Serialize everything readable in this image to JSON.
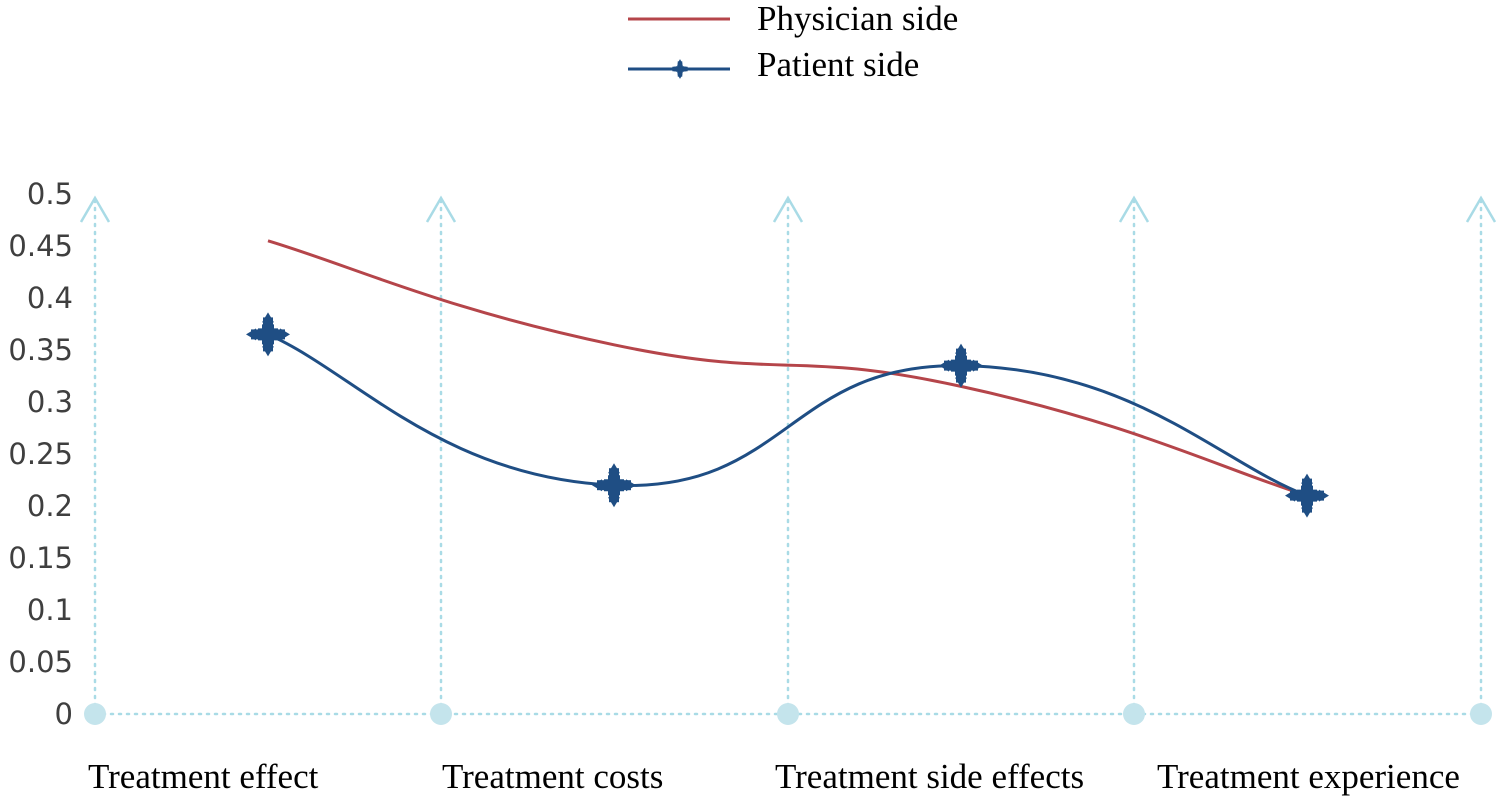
{
  "chart_data": {
    "type": "line",
    "title": "",
    "xlabel": "",
    "ylabel": "",
    "categories": [
      "Treatment effect",
      "Treatment costs",
      "Treatment side effects",
      "Treatment experience"
    ],
    "yticks": [
      "0",
      "0.05",
      "0.1",
      "0.15",
      "0.2",
      "0.25",
      "0.3",
      "0.35",
      "0.4",
      "0.45",
      "0.5"
    ],
    "ylim": [
      0,
      0.5
    ],
    "grid": "vertical dotted arrows",
    "legend_position": "top-center",
    "series": [
      {
        "name": "Physician side",
        "values": [
          0.455,
          0.355,
          0.315,
          0.21
        ],
        "color": "#b5454a",
        "marker": "none"
      },
      {
        "name": "Patient side",
        "values": [
          0.365,
          0.22,
          0.335,
          0.21
        ],
        "color": "#1f4e84",
        "marker": "cross"
      }
    ],
    "colors": {
      "grid": "#a9dbe6",
      "tick": "#3f3f3f"
    }
  }
}
